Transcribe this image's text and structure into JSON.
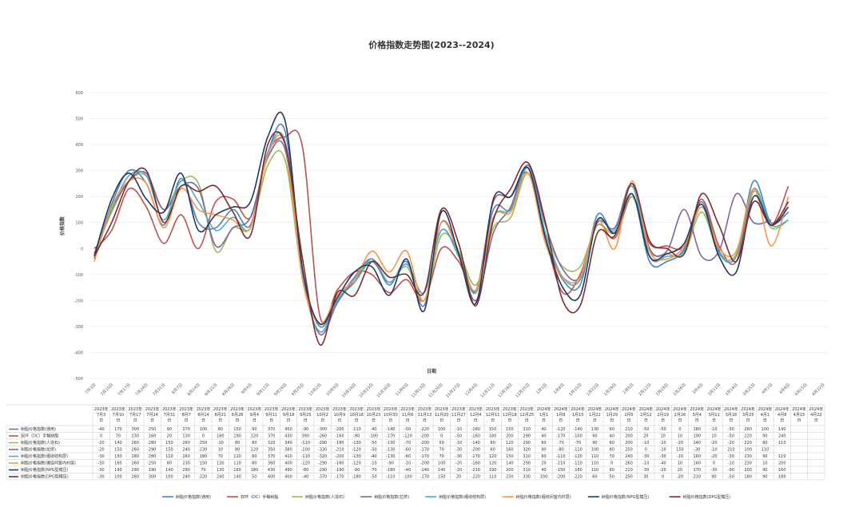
{
  "chart_data": {
    "type": "line",
    "title": "价格指数走势图(2023--2024)",
    "xlabel": "日期",
    "ylabel": "价格指数",
    "ylim": [
      -500,
      600
    ],
    "yticks": [
      -500,
      -400,
      -300,
      -200,
      -100,
      0,
      100,
      200,
      300,
      400,
      500,
      600
    ],
    "grid": true,
    "legend": "bottom",
    "categories": [
      "7月3日",
      "7月10日",
      "7月17日",
      "7月24日",
      "7月31日",
      "8月7日",
      "8月14日",
      "8月21日",
      "8月28日",
      "9月4日",
      "9月11日",
      "9月18日",
      "9月25日",
      "10月2日",
      "10月9日",
      "10月16日",
      "10月23日",
      "10月30日",
      "11月6日",
      "11月13日",
      "11月20日",
      "11月27日",
      "12月4日",
      "12月11日",
      "12月18日",
      "12月25日",
      "1月1日",
      "1月8日",
      "1月15日",
      "1月22日",
      "1月29日",
      "2月5日",
      "2月12日",
      "2月19日",
      "2月26日",
      "3月4日",
      "3月11日",
      "3月18日",
      "3月25日",
      "4月1日",
      "4月8日",
      "4月15日",
      "4月22日"
    ],
    "table_headers": [
      "2023年7月3日",
      "2023年7月10日",
      "2023年7月17日",
      "2023年7月24日",
      "2023年7月31日",
      "2023年8月7日",
      "2023年8月14日",
      "2023年8月21日",
      "2023年8月28日",
      "2023年9月4日",
      "2023年9月11日",
      "2023年9月18日",
      "2023年9月25日",
      "2023年10月2日",
      "2023年10月9日",
      "2023年10月16日",
      "2023年10月23日",
      "2023年10月30日",
      "2023年11月6日",
      "2023年11月13日",
      "2023年11月20日",
      "2023年11月27日",
      "2023年12月4日",
      "2023年12月11日",
      "2023年12月18日",
      "2023年12月25日",
      "2024年1月1日",
      "2024年1月8日",
      "2024年1月15日",
      "2024年1月22日",
      "2024年1月29日",
      "2024年2月5日",
      "2024年2月12日",
      "2024年2月19日",
      "2024年2月26日",
      "2024年3月4日",
      "2024年3月11日",
      "2024年3月18日",
      "2024年3月25日",
      "2024年4月1日",
      "2024年4月8日",
      "2024年4月15日",
      "2024年4月22日"
    ],
    "series": [
      {
        "name": "树脂价格指数(通用)",
        "color": "#4f81bd",
        "values": [
          -40,
          170,
          300,
          250,
          90,
          270,
          100,
          80,
          150,
          90,
          370,
          450,
          -90,
          -300,
          -200,
          -110,
          -40,
          -140,
          -50,
          -220,
          100,
          -10,
          -160,
          150,
          150,
          310,
          40,
          -120,
          -140,
          130,
          60,
          210,
          -50,
          -50,
          0,
          180,
          -10,
          -30,
          260,
          100,
          140,
          null,
          null
        ]
      },
      {
        "name": "双环（DC）手糊树脂",
        "color": "#c0504d",
        "values": [
          0,
          70,
          230,
          160,
          20,
          130,
          0,
          180,
          190,
          120,
          370,
          430,
          390,
          -260,
          -160,
          -90,
          -100,
          -170,
          -120,
          -200,
          0,
          -50,
          -160,
          180,
          200,
          290,
          40,
          -170,
          -100,
          90,
          40,
          200,
          20,
          10,
          10,
          190,
          10,
          -50,
          220,
          90,
          240,
          null,
          null
        ]
      },
      {
        "name": "树脂价格指数(人造石)",
        "color": "#9bbb59",
        "values": [
          -20,
          140,
          260,
          280,
          150,
          260,
          250,
          -10,
          80,
          80,
          320,
          340,
          -110,
          -290,
          -180,
          -130,
          -50,
          -130,
          -70,
          -200,
          50,
          -10,
          -140,
          80,
          120,
          290,
          60,
          -70,
          -70,
          90,
          60,
          200,
          -10,
          -20,
          -20,
          140,
          -20,
          -20,
          220,
          80,
          110,
          null,
          null
        ]
      },
      {
        "name": "树脂价格指数(拉挤)",
        "color": "#8064a2",
        "values": [
          -20,
          150,
          260,
          290,
          150,
          240,
          230,
          10,
          80,
          120,
          350,
          380,
          -100,
          -330,
          -210,
          -120,
          -50,
          -130,
          -60,
          -170,
          70,
          -30,
          -200,
          60,
          160,
          320,
          90,
          -80,
          -110,
          100,
          80,
          250,
          0,
          -10,
          150,
          -30,
          -10,
          210,
          100,
          110,
          null,
          null,
          null
        ]
      },
      {
        "name": "树脂价格指数(缠绕结构层)",
        "color": "#4bacc6",
        "values": [
          -30,
          150,
          280,
          280,
          110,
          260,
          180,
          70,
          120,
          80,
          370,
          410,
          -110,
          -320,
          -200,
          -130,
          -40,
          -130,
          -60,
          -170,
          70,
          -30,
          -170,
          120,
          150,
          310,
          60,
          -110,
          -120,
          110,
          70,
          240,
          -30,
          -30,
          -10,
          160,
          -20,
          -30,
          230,
          90,
          110,
          null,
          null
        ]
      },
      {
        "name": "树脂价格指数(缠绕间室内衬层)",
        "color": "#f79646",
        "values": [
          -50,
          160,
          260,
          250,
          80,
          230,
          150,
          130,
          110,
          80,
          360,
          400,
          -120,
          -290,
          -180,
          -120,
          -10,
          -90,
          -10,
          -200,
          100,
          -20,
          -160,
          120,
          140,
          290,
          20,
          -110,
          -110,
          110,
          0,
          260,
          -10,
          -40,
          10,
          160,
          0,
          -10,
          230,
          10,
          200,
          null,
          null
        ]
      },
      {
        "name": "树脂价格指数(NPG型模压)",
        "color": "#1f3864",
        "values": [
          -30,
          190,
          290,
          190,
          140,
          290,
          70,
          130,
          160,
          180,
          430,
          490,
          -80,
          -290,
          -190,
          -90,
          -70,
          -180,
          -40,
          -240,
          140,
          -20,
          -210,
          190,
          200,
          310,
          40,
          -150,
          -180,
          110,
          60,
          210,
          -30,
          -20,
          20,
          170,
          -30,
          -90,
          200,
          90,
          160,
          null,
          null
        ]
      },
      {
        "name": "树脂价格指数(DPG型模压)",
        "color": "#7b2c2c",
        "values": [
          -30,
          100,
          260,
          300,
          100,
          240,
          220,
          240,
          140,
          50,
          400,
          400,
          -40,
          -370,
          -170,
          -180,
          -50,
          -110,
          -100,
          -170,
          150,
          20,
          -220,
          110,
          230,
          330,
          100,
          -200,
          -220,
          60,
          50,
          250,
          30,
          0,
          -20,
          210,
          90,
          -50,
          180,
          90,
          180,
          null,
          null
        ]
      }
    ]
  }
}
